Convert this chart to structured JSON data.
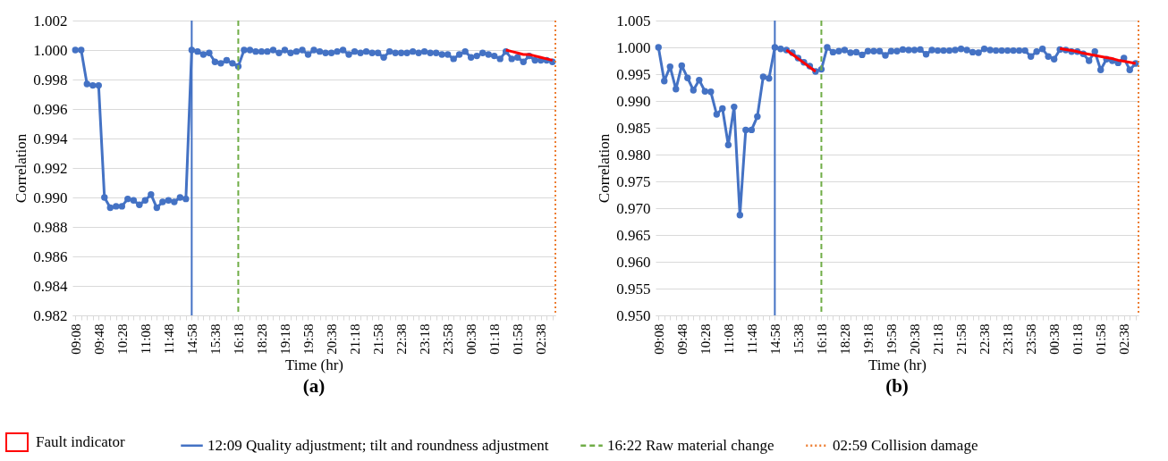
{
  "chart_data": [
    {
      "type": "line",
      "title": "(a)",
      "xlabel": "Time (hr)",
      "ylabel": "Correlation",
      "categories": [
        "09:08",
        null,
        null,
        null,
        "09:48",
        null,
        null,
        null,
        "10:28",
        null,
        null,
        null,
        "11:08",
        null,
        null,
        null,
        "11:48",
        null,
        null,
        null,
        "14:58",
        null,
        null,
        null,
        "15:38",
        null,
        null,
        null,
        "16:18",
        null,
        null,
        null,
        "18:28",
        null,
        null,
        null,
        "19:18",
        null,
        null,
        null,
        "19:58",
        null,
        null,
        null,
        "20:38",
        null,
        null,
        null,
        "21:18",
        null,
        null,
        null,
        "21:58",
        null,
        null,
        null,
        "22:38",
        null,
        null,
        null,
        "23:18",
        null,
        null,
        null,
        "23:58",
        null,
        null,
        null,
        "00:38",
        null,
        null,
        null,
        "01:18",
        null,
        null,
        null,
        "01:58",
        null,
        null,
        null,
        "02:38",
        null,
        null
      ],
      "series": [
        {
          "color": "#4472c4",
          "marker": "circle",
          "values": [
            1.0,
            1.0,
            0.9977,
            0.9976,
            0.9976,
            0.99,
            0.9893,
            0.9894,
            0.9894,
            0.9899,
            0.9898,
            0.9895,
            0.9898,
            0.9902,
            0.9893,
            0.9897,
            0.9898,
            0.9897,
            0.99,
            0.9899,
            1.0,
            0.9999,
            0.9997,
            0.9998,
            0.9992,
            0.9991,
            0.9993,
            0.9991,
            0.9989,
            1.0,
            1.0,
            0.9999,
            0.9999,
            0.9999,
            1.0,
            0.9998,
            1.0,
            0.9998,
            0.9999,
            1.0,
            0.9997,
            1.0,
            0.9999,
            0.9998,
            0.9998,
            0.9999,
            1.0,
            0.9997,
            0.9999,
            0.9998,
            0.9999,
            0.9998,
            0.9998,
            0.9995,
            0.9999,
            0.9998,
            0.9998,
            0.9998,
            0.9999,
            0.9998,
            0.9999,
            0.9998,
            0.9998,
            0.9997,
            0.9997,
            0.9994,
            0.9997,
            0.9999,
            0.9995,
            0.9996,
            0.9998,
            0.9997,
            0.9996,
            0.9994,
            0.9999,
            0.9994,
            0.9995,
            0.9992,
            0.9996,
            0.9993,
            0.9993,
            0.9993,
            0.9992
          ]
        },
        {
          "color": "#ff0000",
          "marker": "none",
          "values": [
            null,
            null,
            null,
            null,
            null,
            null,
            null,
            null,
            null,
            null,
            null,
            null,
            null,
            null,
            null,
            null,
            null,
            null,
            null,
            null,
            null,
            null,
            null,
            null,
            null,
            null,
            null,
            null,
            null,
            null,
            null,
            null,
            null,
            null,
            null,
            null,
            null,
            null,
            null,
            null,
            null,
            null,
            null,
            null,
            null,
            null,
            null,
            null,
            null,
            null,
            null,
            null,
            null,
            null,
            null,
            null,
            null,
            null,
            null,
            null,
            null,
            null,
            null,
            null,
            null,
            null,
            null,
            null,
            null,
            null,
            null,
            null,
            null,
            null,
            1.0,
            0.9999,
            0.9998,
            0.9997,
            0.9997,
            0.9996,
            0.9995,
            0.9994,
            0.9993
          ]
        }
      ],
      "ylim": [
        0.982,
        1.002
      ],
      "yticks": [
        {
          "value": 0.982,
          "label": "0.982"
        },
        {
          "value": 0.984,
          "label": "0.984"
        },
        {
          "value": 0.986,
          "label": "0.986"
        },
        {
          "value": 0.988,
          "label": "0.988"
        },
        {
          "value": 0.99,
          "label": "0.990"
        },
        {
          "value": 0.992,
          "label": "0.992"
        },
        {
          "value": 0.994,
          "label": "0.994"
        },
        {
          "value": 0.996,
          "label": "0.996"
        },
        {
          "value": 0.998,
          "label": "0.998"
        },
        {
          "value": 1,
          "label": "1.000"
        },
        {
          "value": 1.002,
          "label": "1.002"
        }
      ],
      "grid": "y",
      "legend": "bottom",
      "annotations": [
        "Fault indicator"
      ],
      "ref_lines": [
        {
          "axis": "x",
          "value": "14:58",
          "label": "12:09 Quality adjustment; tilt and roundness adjustment",
          "color": "#4472c4",
          "line_style": "solid"
        },
        {
          "axis": "x",
          "value": "16:18",
          "label": "16:22 Raw material change",
          "color": "#70ad47",
          "line_style": "dashed"
        },
        {
          "axis": "x",
          "label": "02:59 Collision damage",
          "color": "#ed7d31",
          "line_style": "dotted"
        }
      ]
    },
    {
      "type": "line",
      "title": "(b)",
      "xlabel": "Time (hr)",
      "ylabel": "Correlation",
      "categories": [
        "09:08",
        null,
        null,
        null,
        "09:48",
        null,
        null,
        null,
        "10:28",
        null,
        null,
        null,
        "11:08",
        null,
        null,
        null,
        "11:48",
        null,
        null,
        null,
        "14:58",
        null,
        null,
        null,
        "15:38",
        null,
        null,
        null,
        "16:18",
        null,
        null,
        null,
        "18:28",
        null,
        null,
        null,
        "19:18",
        null,
        null,
        null,
        "19:58",
        null,
        null,
        null,
        "20:38",
        null,
        null,
        null,
        "21:18",
        null,
        null,
        null,
        "21:58",
        null,
        null,
        null,
        "22:38",
        null,
        null,
        null,
        "23:18",
        null,
        null,
        null,
        "23:58",
        null,
        null,
        null,
        "00:38",
        null,
        null,
        null,
        "01:18",
        null,
        null,
        null,
        "01:58",
        null,
        null,
        null,
        "02:38",
        null,
        null
      ],
      "series": [
        {
          "color": "#4472c4",
          "marker": "circle",
          "values": [
            1.0,
            0.9937,
            0.9964,
            0.9922,
            0.9966,
            0.9943,
            0.992,
            0.9939,
            0.9918,
            0.9917,
            0.9875,
            0.9886,
            0.9818,
            0.9889,
            0.9687,
            0.9846,
            0.9846,
            0.9871,
            0.9945,
            0.9942,
            1.0,
            0.9997,
            0.9995,
            0.999,
            0.998,
            0.9972,
            0.9965,
            0.9955,
            0.9959,
            1.0,
            0.9991,
            0.9993,
            0.9995,
            0.999,
            0.9991,
            0.9986,
            0.9993,
            0.9993,
            0.9993,
            0.9985,
            0.9993,
            0.9993,
            0.9996,
            0.9995,
            0.9995,
            0.9996,
            0.9987,
            0.9995,
            0.9994,
            0.9994,
            0.9994,
            0.9995,
            0.9997,
            0.9995,
            0.9991,
            0.999,
            0.9997,
            0.9995,
            0.9994,
            0.9994,
            0.9994,
            0.9994,
            0.9994,
            0.9994,
            0.9983,
            0.9992,
            0.9997,
            0.9983,
            0.9978,
            0.9996,
            0.9995,
            0.9992,
            0.9992,
            0.9988,
            0.9975,
            0.9992,
            0.9958,
            0.9978,
            0.9975,
            0.9971,
            0.998,
            0.9958,
            0.997
          ]
        },
        {
          "color": "#ff0000",
          "marker": "none",
          "values": [
            null,
            null,
            null,
            null,
            null,
            null,
            null,
            null,
            null,
            null,
            null,
            null,
            null,
            null,
            null,
            null,
            null,
            null,
            null,
            null,
            null,
            null,
            0.9995,
            0.9987,
            0.9979,
            0.9971,
            0.9963,
            0.9955,
            null,
            null,
            null,
            null,
            null,
            null,
            null,
            null,
            null,
            null,
            null,
            null,
            null,
            null,
            null,
            null,
            null,
            null,
            null,
            null,
            null,
            null,
            null,
            null,
            null,
            null,
            null,
            null,
            null,
            null,
            null,
            null,
            null,
            null,
            null,
            null,
            null,
            null,
            null,
            null,
            null,
            null,
            null,
            null,
            null,
            null,
            null,
            null,
            null,
            null,
            null,
            null,
            null,
            null,
            null
          ]
        },
        {
          "color": "#ff0000",
          "marker": "none",
          "values": [
            null,
            null,
            null,
            null,
            null,
            null,
            null,
            null,
            null,
            null,
            null,
            null,
            null,
            null,
            null,
            null,
            null,
            null,
            null,
            null,
            null,
            null,
            null,
            null,
            null,
            null,
            null,
            null,
            null,
            null,
            null,
            null,
            null,
            null,
            null,
            null,
            null,
            null,
            null,
            null,
            null,
            null,
            null,
            null,
            null,
            null,
            null,
            null,
            null,
            null,
            null,
            null,
            null,
            null,
            null,
            null,
            null,
            null,
            null,
            null,
            null,
            null,
            null,
            null,
            null,
            null,
            null,
            null,
            null,
            0.9998,
            0.9996,
            0.9994,
            0.9992,
            0.9989,
            0.9987,
            0.9985,
            0.9983,
            0.9981,
            0.9979,
            0.9976,
            0.9974,
            0.9972,
            0.997
          ]
        }
      ],
      "ylim": [
        0.95,
        1.005
      ],
      "yticks": [
        {
          "value": 0.95,
          "label": "0.950"
        },
        {
          "value": 0.955,
          "label": "0.955"
        },
        {
          "value": 0.96,
          "label": "0.960"
        },
        {
          "value": 0.965,
          "label": "0.965"
        },
        {
          "value": 0.97,
          "label": "0.970"
        },
        {
          "value": 0.975,
          "label": "0.975"
        },
        {
          "value": 0.98,
          "label": "0.980"
        },
        {
          "value": 0.985,
          "label": "0.985"
        },
        {
          "value": 0.99,
          "label": "0.990"
        },
        {
          "value": 0.995,
          "label": "0.995"
        },
        {
          "value": 1,
          "label": "1.000"
        },
        {
          "value": 1.005,
          "label": "1.005"
        }
      ],
      "grid": "y",
      "ref_lines": [
        {
          "axis": "x",
          "value": "14:58",
          "color": "#4472c4",
          "line_style": "solid"
        },
        {
          "axis": "x",
          "value": "16:18",
          "color": "#70ad47",
          "line_style": "dashed"
        },
        {
          "axis": "x",
          "color": "#ed7d31",
          "line_style": "dotted"
        }
      ]
    }
  ]
}
